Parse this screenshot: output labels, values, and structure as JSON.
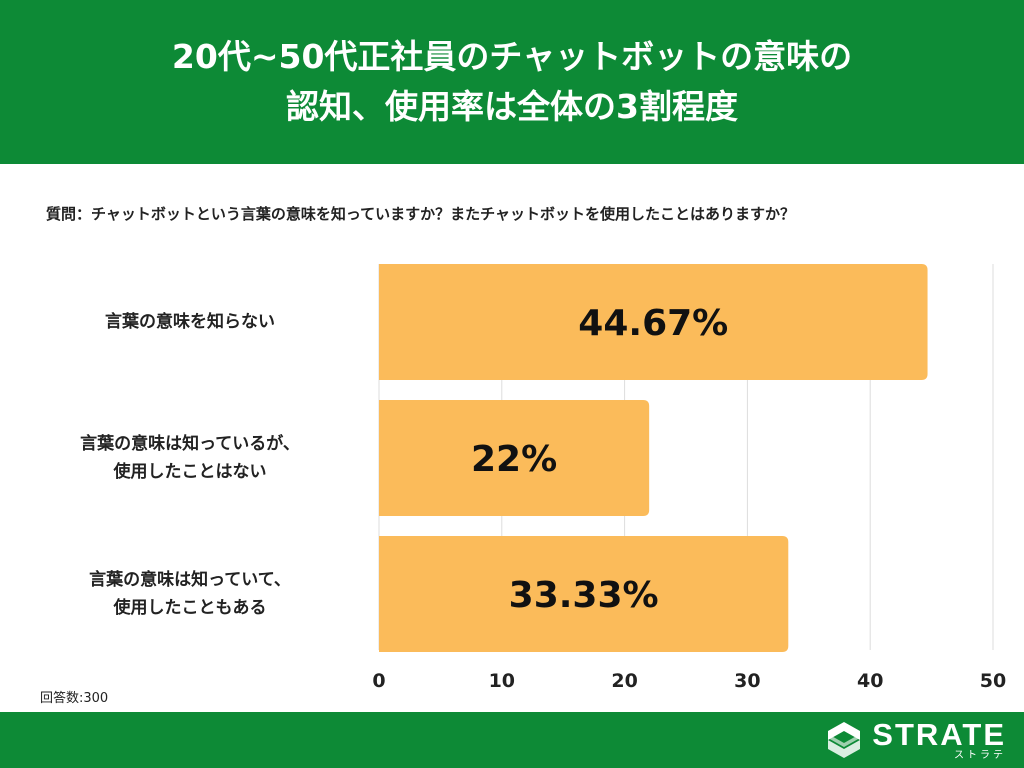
{
  "header": {
    "title_line1": "20代~50代正社員のチャットボットの意味の",
    "title_line2": "認知、使用率は全体の3割程度"
  },
  "question": "質問：チャットボットという言葉の意味を知っていますか？またチャットボットを使用したことはありますか？",
  "chart_data": {
    "type": "bar",
    "orientation": "horizontal",
    "categories": [
      [
        "言葉の意味を知らない"
      ],
      [
        "言葉の意味は知っているが、",
        "使用したことはない"
      ],
      [
        "言葉の意味は知っていて、",
        "使用したこともある"
      ]
    ],
    "values": [
      44.67,
      22,
      33.33
    ],
    "value_labels": [
      "44.67%",
      "22%",
      "33.33%"
    ],
    "xlim": [
      0,
      50
    ],
    "x_ticks": [
      "0",
      "10",
      "20",
      "30",
      "40",
      "50"
    ],
    "grid": true,
    "bar_color": "#fbbb5a"
  },
  "respondents": "回答数:300",
  "footer": {
    "logo_name": "STRATE",
    "logo_sub": "ストラテ"
  },
  "colors": {
    "brand_green": "#0d8a36",
    "bar": "#fbbb5a",
    "grid": "#dddddd"
  }
}
